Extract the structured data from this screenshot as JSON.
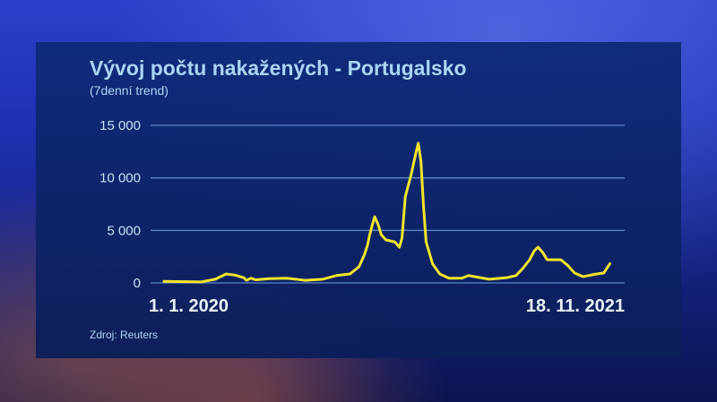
{
  "chart_data": {
    "type": "line",
    "title": "Vývoj počtu nakažených - Portugalsko",
    "subtitle": "(7denní trend)",
    "source": "Zdroj: Reuters",
    "xlabel": "",
    "ylabel": "",
    "xlim": [
      "2020-01-01",
      "2021-11-18"
    ],
    "ylim": [
      0,
      15000
    ],
    "x_tick_labels": [
      "1. 1. 2020",
      "18. 11. 2021"
    ],
    "y_ticks": [
      0,
      5000,
      10000,
      15000
    ],
    "y_tick_labels": [
      "0",
      "5 000",
      "10 000",
      "15 000"
    ],
    "grid": true,
    "colors": {
      "line": "#f2e52a",
      "grid": "#5b86c9"
    },
    "series": [
      {
        "x": [
          "2020-01-01",
          "2020-02-29",
          "2020-03-21",
          "2020-04-07",
          "2020-04-20",
          "2020-05-04",
          "2020-05-08",
          "2020-05-15",
          "2020-05-22",
          "2020-06-12",
          "2020-07-09",
          "2020-08-06",
          "2020-09-02",
          "2020-09-23",
          "2020-10-14",
          "2020-10-28",
          "2020-11-05",
          "2020-11-10",
          "2020-11-13",
          "2020-11-17",
          "2020-11-21",
          "2020-11-26",
          "2020-12-01",
          "2020-12-08",
          "2020-12-22",
          "2020-12-29",
          "2021-01-02",
          "2021-01-07",
          "2021-01-16",
          "2021-01-23",
          "2021-01-27",
          "2021-01-31",
          "2021-02-04",
          "2021-02-08",
          "2021-02-18",
          "2021-03-01",
          "2021-03-15",
          "2021-04-04",
          "2021-04-14",
          "2021-05-02",
          "2021-05-16",
          "2021-06-12",
          "2021-06-26",
          "2021-07-06",
          "2021-07-17",
          "2021-07-24",
          "2021-07-30",
          "2021-08-06",
          "2021-08-13",
          "2021-09-03",
          "2021-09-13",
          "2021-09-24",
          "2021-10-07",
          "2021-10-28",
          "2021-11-08",
          "2021-11-18"
        ],
        "y": [
          150,
          100,
          350,
          850,
          750,
          500,
          250,
          450,
          300,
          400,
          450,
          250,
          350,
          700,
          850,
          1550,
          2650,
          3600,
          4500,
          5450,
          6300,
          5600,
          4600,
          4100,
          3900,
          3400,
          4300,
          8200,
          10300,
          12300,
          13300,
          11600,
          7300,
          3900,
          1800,
          850,
          450,
          450,
          700,
          500,
          350,
          500,
          700,
          1350,
          2200,
          3050,
          3400,
          2900,
          2200,
          2200,
          1700,
          950,
          600,
          850,
          950,
          1900
        ]
      }
    ]
  }
}
